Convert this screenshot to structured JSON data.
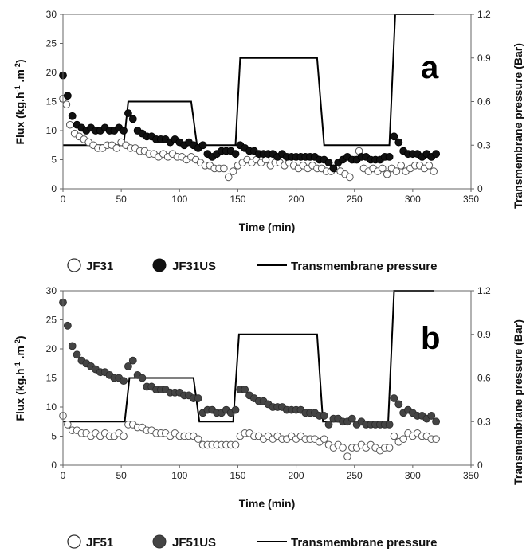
{
  "chart_data": [
    {
      "type": "scatter",
      "panel_label": "a",
      "xlabel": "Time (min)",
      "ylabel": "Flux (kg.h-1.m-2)",
      "y2label": "Transmembrane pressure (Bar)",
      "xlim": [
        0,
        350
      ],
      "ylim": [
        0,
        30
      ],
      "y2lim": [
        0,
        1.2
      ],
      "xticks": [
        0,
        50,
        100,
        150,
        200,
        250,
        300,
        350
      ],
      "yticks": [
        0,
        5,
        10,
        15,
        20,
        25,
        30
      ],
      "y2ticks": [
        "0",
        "0.3",
        "0.6",
        "0.9",
        "1.2"
      ],
      "grid": false,
      "legend_position": "below",
      "legend": [
        "JF31",
        "JF31US",
        "Transmembrane pressure"
      ],
      "series": [
        {
          "name": "JF31",
          "marker": "open-circle",
          "axis": "left",
          "x": [
            0,
            3,
            6,
            10,
            14,
            18,
            22,
            26,
            30,
            34,
            38,
            42,
            46,
            50,
            54,
            58,
            62,
            66,
            70,
            74,
            78,
            82,
            86,
            90,
            94,
            98,
            102,
            106,
            110,
            114,
            118,
            122,
            126,
            130,
            134,
            138,
            142,
            146,
            150,
            154,
            158,
            162,
            166,
            170,
            174,
            178,
            182,
            186,
            190,
            194,
            198,
            202,
            206,
            210,
            214,
            218,
            222,
            226,
            230,
            234,
            238,
            242,
            246,
            250,
            254,
            258,
            262,
            266,
            270,
            274,
            278,
            282,
            286,
            290,
            294,
            298,
            302,
            306,
            310,
            314,
            318
          ],
          "y": [
            15.5,
            14.5,
            11,
            9.5,
            9,
            8.5,
            8,
            7.5,
            7,
            7,
            7.5,
            7.5,
            7,
            8,
            7.5,
            7,
            7,
            6.5,
            6.5,
            6,
            6,
            5.5,
            6,
            5.5,
            6,
            5.5,
            5.5,
            5,
            5.5,
            5,
            4.5,
            4,
            4,
            3.5,
            3.5,
            3.5,
            2,
            3,
            4,
            4.5,
            5,
            4.5,
            5,
            4.5,
            5,
            4,
            4.5,
            4.5,
            4,
            4.5,
            4,
            3.5,
            4,
            3.5,
            4,
            3.5,
            3.5,
            3,
            3,
            3.5,
            3,
            2.5,
            2,
            5,
            6.5,
            3.5,
            3,
            3.5,
            3,
            3.5,
            2.5,
            3.5,
            3,
            4,
            3,
            3.5,
            4,
            4,
            3.5,
            4,
            3
          ]
        },
        {
          "name": "JF31US",
          "marker": "filled-circle",
          "axis": "left",
          "x": [
            0,
            4,
            8,
            12,
            16,
            20,
            24,
            28,
            32,
            36,
            40,
            44,
            48,
            52,
            56,
            60,
            64,
            68,
            72,
            76,
            80,
            84,
            88,
            92,
            96,
            100,
            104,
            108,
            112,
            116,
            120,
            124,
            128,
            132,
            136,
            140,
            144,
            148,
            152,
            156,
            160,
            164,
            168,
            172,
            176,
            180,
            184,
            188,
            192,
            196,
            200,
            204,
            208,
            212,
            216,
            220,
            224,
            228,
            232,
            236,
            240,
            244,
            248,
            252,
            256,
            260,
            264,
            268,
            272,
            276,
            280,
            284,
            288,
            292,
            296,
            300,
            304,
            308,
            312,
            316,
            320
          ],
          "y": [
            19.5,
            16,
            12.5,
            11,
            10.5,
            10,
            10.5,
            10,
            10,
            10.5,
            10,
            10,
            10.5,
            10,
            13,
            12,
            10,
            9.5,
            9,
            9,
            8.5,
            8.5,
            8.5,
            8,
            8.5,
            8,
            7.5,
            8,
            7.5,
            7,
            7.5,
            6,
            5.5,
            6,
            6.5,
            6.5,
            6.5,
            6,
            7.5,
            7,
            6.5,
            6.5,
            6,
            6,
            6,
            6,
            5.5,
            6,
            5.5,
            5.5,
            5.5,
            5.5,
            5.5,
            5.5,
            5.5,
            5,
            5,
            4.5,
            3.5,
            4.5,
            5,
            5.5,
            5,
            5,
            5.5,
            5.5,
            5,
            5,
            5,
            5.5,
            5.5,
            9,
            8,
            6.5,
            6,
            6,
            6,
            5.5,
            6,
            5.5,
            6
          ]
        },
        {
          "name": "Transmembrane pressure",
          "marker": "line",
          "axis": "right",
          "x": [
            0,
            52,
            56,
            110,
            115,
            148,
            152,
            218,
            224,
            280,
            285,
            318
          ],
          "y": [
            0.3,
            0.3,
            0.6,
            0.6,
            0.3,
            0.3,
            0.9,
            0.9,
            0.3,
            0.3,
            1.2,
            1.2
          ]
        }
      ]
    },
    {
      "type": "scatter",
      "panel_label": "b",
      "xlabel": "Time (min)",
      "ylabel": "Flux (kg.h-1.m-2)",
      "y2label": "Transmembrane pressure (Bar)",
      "xlim": [
        0,
        350
      ],
      "ylim": [
        0,
        30
      ],
      "y2lim": [
        0,
        1.2
      ],
      "xticks": [
        0,
        50,
        100,
        150,
        200,
        250,
        300,
        350
      ],
      "yticks": [
        0,
        5,
        10,
        15,
        20,
        25,
        30
      ],
      "y2ticks": [
        "0",
        "0.3",
        "0.6",
        "0.9",
        "1.2"
      ],
      "grid": false,
      "legend_position": "below",
      "legend": [
        "JF51",
        "JF51US",
        "Transmembrane pressure"
      ],
      "series": [
        {
          "name": "JF51",
          "marker": "open-circle",
          "axis": "left",
          "x": [
            0,
            4,
            8,
            12,
            16,
            20,
            24,
            28,
            32,
            36,
            40,
            44,
            48,
            52,
            56,
            60,
            64,
            68,
            72,
            76,
            80,
            84,
            88,
            92,
            96,
            100,
            104,
            108,
            112,
            116,
            120,
            124,
            128,
            132,
            136,
            140,
            144,
            148,
            152,
            156,
            160,
            164,
            168,
            172,
            176,
            180,
            184,
            188,
            192,
            196,
            200,
            204,
            208,
            212,
            216,
            220,
            224,
            228,
            232,
            236,
            240,
            244,
            248,
            252,
            256,
            260,
            264,
            268,
            272,
            276,
            280,
            284,
            288,
            292,
            296,
            300,
            304,
            308,
            312,
            316,
            320
          ],
          "y": [
            8.5,
            7,
            6,
            6,
            5.5,
            5.5,
            5,
            5.5,
            5,
            5.5,
            5,
            5,
            5.5,
            5,
            7,
            7,
            6.5,
            6.5,
            6,
            6,
            5.5,
            5.5,
            5.5,
            5,
            5.5,
            5,
            5,
            5,
            5,
            4.5,
            3.5,
            3.5,
            3.5,
            3.5,
            3.5,
            3.5,
            3.5,
            3.5,
            5,
            5.5,
            5.5,
            5,
            5,
            4.5,
            5,
            4.5,
            5,
            4.5,
            4.5,
            5,
            4.5,
            5,
            4.5,
            4.5,
            4.5,
            4,
            4.5,
            3.5,
            3,
            3.5,
            3,
            1.5,
            3,
            3,
            3.5,
            3,
            3.5,
            3,
            2.5,
            3,
            3,
            5,
            4,
            4.5,
            5.5,
            5,
            5.5,
            5,
            5,
            4.5,
            4.5
          ]
        },
        {
          "name": "JF51US",
          "marker": "filled-circle",
          "axis": "left",
          "x": [
            0,
            4,
            8,
            12,
            16,
            20,
            24,
            28,
            32,
            36,
            40,
            44,
            48,
            52,
            56,
            60,
            64,
            68,
            72,
            76,
            80,
            84,
            88,
            92,
            96,
            100,
            104,
            108,
            112,
            116,
            120,
            124,
            128,
            132,
            136,
            140,
            144,
            148,
            152,
            156,
            160,
            164,
            168,
            172,
            176,
            180,
            184,
            188,
            192,
            196,
            200,
            204,
            208,
            212,
            216,
            220,
            224,
            228,
            232,
            236,
            240,
            244,
            248,
            252,
            256,
            260,
            264,
            268,
            272,
            276,
            280,
            284,
            288,
            292,
            296,
            300,
            304,
            308,
            312,
            316,
            320
          ],
          "y": [
            28,
            24,
            20.5,
            19,
            18,
            17.5,
            17,
            16.5,
            16,
            16,
            15.5,
            15,
            15,
            14.5,
            17,
            18,
            15.5,
            15,
            13.5,
            13.5,
            13,
            13,
            13,
            12.5,
            12.5,
            12.5,
            12,
            12,
            11.5,
            11.5,
            9,
            9.5,
            9.5,
            9,
            9,
            9.5,
            9,
            9.5,
            13,
            13,
            12,
            11.5,
            11,
            11,
            10.5,
            10,
            10,
            10,
            9.5,
            9.5,
            9.5,
            9.5,
            9,
            9,
            9,
            8.5,
            8.5,
            7,
            8,
            8,
            7.5,
            7.5,
            8,
            7,
            7.5,
            7,
            7,
            7,
            7,
            7,
            7,
            11.5,
            10.5,
            9,
            9.5,
            9,
            8.5,
            8.5,
            8,
            8.5,
            7.5
          ]
        },
        {
          "name": "Transmembrane pressure",
          "marker": "line",
          "axis": "right",
          "x": [
            0,
            53,
            57,
            112,
            117,
            146,
            151,
            218,
            223,
            279,
            284,
            318
          ],
          "y": [
            0.3,
            0.3,
            0.6,
            0.6,
            0.3,
            0.3,
            0.9,
            0.9,
            0.3,
            0.3,
            1.2,
            1.2
          ]
        }
      ]
    }
  ]
}
